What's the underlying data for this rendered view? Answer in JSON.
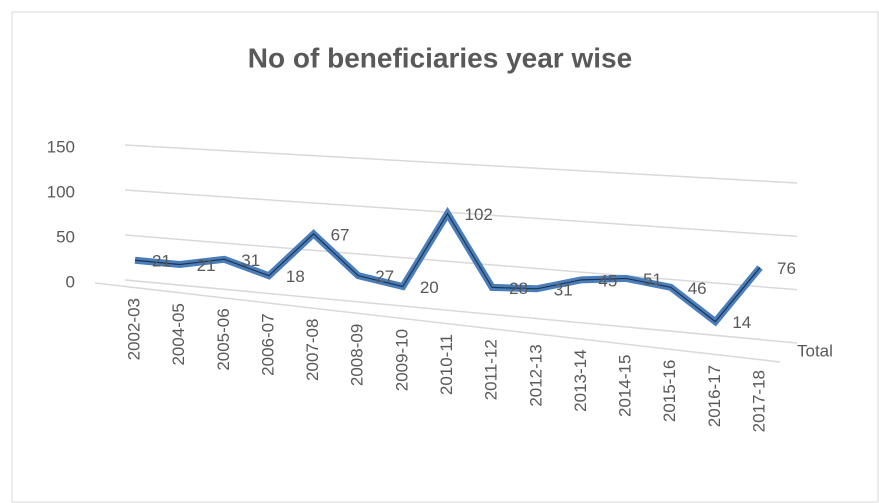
{
  "chart_data": {
    "type": "line",
    "title": "No of beneficiaries year wise",
    "categories": [
      "2002-03",
      "2004-05",
      "2005-06",
      "2006-07",
      "2007-08",
      "2008-09",
      "2009-10",
      "2010-11",
      "2011-12",
      "2012-13",
      "2013-14",
      "2014-15",
      "2015-16",
      "2016-17",
      "2017-18"
    ],
    "series": [
      {
        "name": "Total",
        "color": "#4a7ebb",
        "values": [
          21,
          21,
          31,
          18,
          67,
          27,
          20,
          102,
          28,
          31,
          45,
          51,
          46,
          14,
          76
        ]
      }
    ],
    "ylim": [
      0,
      150
    ],
    "yticks": [
      0,
      50,
      100,
      150
    ],
    "grid": true
  }
}
